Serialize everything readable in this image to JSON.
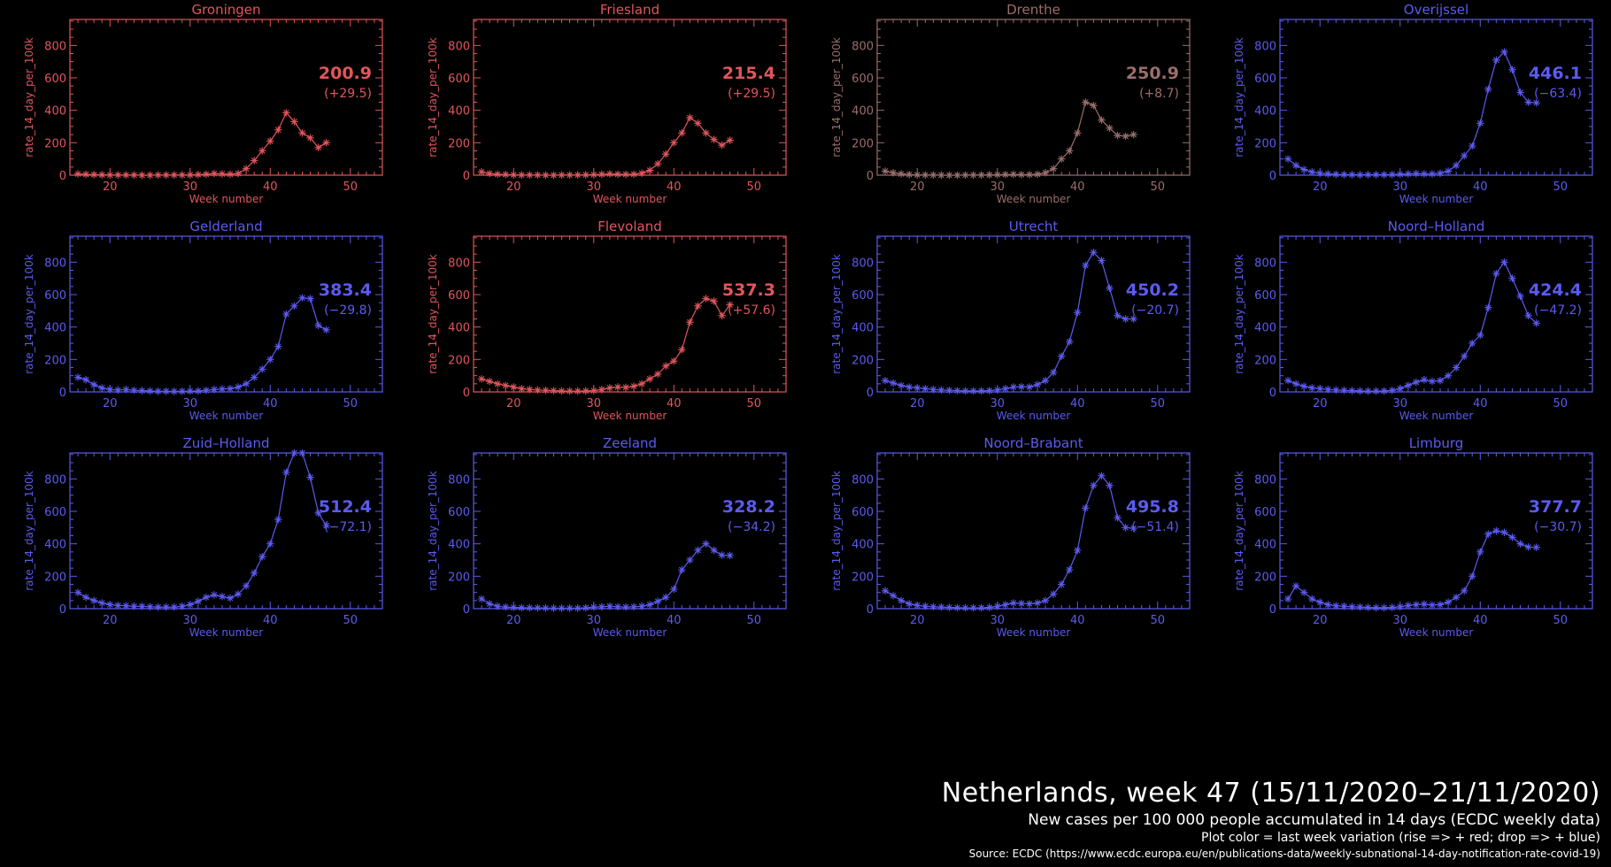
{
  "footer": {
    "title": "Netherlands, week 47 (15/11/2020–21/11/2020)",
    "subtitle": "New cases per 100 000 people accumulated in 14 days (ECDC weekly data)",
    "note": "Plot color = last week variation (rise => + red; drop => + blue)",
    "source": "Source: ECDC (https://www.ecdc.europa.eu/en/publications-data/weekly-subnational-14-day-notification-rate-covid-19)"
  },
  "colors": {
    "red": "#e0565c",
    "blue": "#5b5bf0",
    "neutral": "#9a6e6c",
    "background": "#000000"
  },
  "chart_data": [
    {
      "type": "line",
      "title": "Groningen",
      "xlabel": "Week number",
      "ylabel": "rate_14_day_per_100k",
      "xlim": [
        15,
        54
      ],
      "ylim": [
        0,
        960
      ],
      "xticks": [
        20,
        30,
        40,
        50
      ],
      "yticks": [
        0,
        200,
        400,
        600,
        800
      ],
      "x": [
        16,
        17,
        18,
        19,
        20,
        21,
        22,
        23,
        24,
        25,
        26,
        27,
        28,
        29,
        30,
        31,
        32,
        33,
        34,
        35,
        36,
        37,
        38,
        39,
        40,
        41,
        42,
        43,
        44,
        45,
        46,
        47
      ],
      "series": [
        {
          "values": [
            8,
            5,
            3,
            2,
            1,
            1,
            1,
            1,
            0,
            0,
            1,
            1,
            1,
            1,
            2,
            3,
            6,
            10,
            8,
            6,
            10,
            40,
            90,
            150,
            210,
            280,
            385,
            330,
            260,
            230,
            170,
            200
          ]
        }
      ],
      "last_value": "200.9",
      "variation": "(+29.5)",
      "color": "red"
    },
    {
      "type": "line",
      "title": "Friesland",
      "xlabel": "Week number",
      "ylabel": "rate_14_day_per_100k",
      "xlim": [
        15,
        54
      ],
      "ylim": [
        0,
        960
      ],
      "xticks": [
        20,
        30,
        40,
        50
      ],
      "yticks": [
        0,
        200,
        400,
        600,
        800
      ],
      "x": [
        16,
        17,
        18,
        19,
        20,
        21,
        22,
        23,
        24,
        25,
        26,
        27,
        28,
        29,
        30,
        31,
        32,
        33,
        34,
        35,
        36,
        37,
        38,
        39,
        40,
        41,
        42,
        43,
        44,
        45,
        46,
        47
      ],
      "series": [
        {
          "values": [
            20,
            10,
            6,
            4,
            2,
            1,
            1,
            1,
            0,
            0,
            1,
            1,
            1,
            2,
            3,
            5,
            8,
            6,
            5,
            6,
            12,
            30,
            70,
            130,
            200,
            260,
            355,
            320,
            260,
            220,
            185,
            215
          ]
        }
      ],
      "last_value": "215.4",
      "variation": "(+29.5)",
      "color": "red"
    },
    {
      "type": "line",
      "title": "Drenthe",
      "xlabel": "Week number",
      "ylabel": "rate_14_day_per_100k",
      "xlim": [
        15,
        54
      ],
      "ylim": [
        0,
        960
      ],
      "xticks": [
        20,
        30,
        40,
        50
      ],
      "yticks": [
        0,
        200,
        400,
        600,
        800
      ],
      "x": [
        16,
        17,
        18,
        19,
        20,
        21,
        22,
        23,
        24,
        25,
        26,
        27,
        28,
        29,
        30,
        31,
        32,
        33,
        34,
        35,
        36,
        37,
        38,
        39,
        40,
        41,
        42,
        43,
        44,
        45,
        46,
        47
      ],
      "series": [
        {
          "values": [
            25,
            15,
            8,
            4,
            2,
            1,
            1,
            0,
            0,
            0,
            1,
            1,
            1,
            2,
            3,
            4,
            5,
            4,
            4,
            6,
            15,
            40,
            100,
            150,
            260,
            450,
            430,
            340,
            290,
            245,
            240,
            250
          ]
        }
      ],
      "last_value": "250.9",
      "variation": "(+8.7)",
      "color": "neutral"
    },
    {
      "type": "line",
      "title": "Overijssel",
      "xlabel": "Week number",
      "ylabel": "rate_14_day_per_100k",
      "xlim": [
        15,
        54
      ],
      "ylim": [
        0,
        960
      ],
      "xticks": [
        20,
        30,
        40,
        50
      ],
      "yticks": [
        0,
        200,
        400,
        600,
        800
      ],
      "x": [
        16,
        17,
        18,
        19,
        20,
        21,
        22,
        23,
        24,
        25,
        26,
        27,
        28,
        29,
        30,
        31,
        32,
        33,
        34,
        35,
        36,
        37,
        38,
        39,
        40,
        41,
        42,
        43,
        44,
        45,
        46,
        47
      ],
      "series": [
        {
          "values": [
            100,
            60,
            35,
            20,
            12,
            8,
            5,
            4,
            3,
            2,
            3,
            3,
            3,
            4,
            6,
            8,
            10,
            8,
            8,
            12,
            25,
            60,
            120,
            180,
            320,
            530,
            710,
            760,
            650,
            510,
            450,
            446
          ]
        }
      ],
      "last_value": "446.1",
      "variation": "(−63.4)",
      "color": "blue"
    },
    {
      "type": "line",
      "title": "Gelderland",
      "xlabel": "Week number",
      "ylabel": "rate_14_day_per_100k",
      "xlim": [
        15,
        54
      ],
      "ylim": [
        0,
        960
      ],
      "xticks": [
        20,
        30,
        40,
        50
      ],
      "yticks": [
        0,
        200,
        400,
        600,
        800
      ],
      "x": [
        16,
        17,
        18,
        19,
        20,
        21,
        22,
        23,
        24,
        25,
        26,
        27,
        28,
        29,
        30,
        31,
        32,
        33,
        34,
        35,
        36,
        37,
        38,
        39,
        40,
        41,
        42,
        43,
        44,
        45,
        46,
        47
      ],
      "series": [
        {
          "values": [
            90,
            75,
            45,
            25,
            15,
            12,
            15,
            10,
            8,
            6,
            4,
            4,
            3,
            4,
            5,
            6,
            10,
            15,
            18,
            20,
            30,
            50,
            90,
            140,
            200,
            280,
            480,
            530,
            580,
            575,
            410,
            383
          ]
        }
      ],
      "last_value": "383.4",
      "variation": "(−29.8)",
      "color": "blue"
    },
    {
      "type": "line",
      "title": "Flevoland",
      "xlabel": "Week number",
      "ylabel": "rate_14_day_per_100k",
      "xlim": [
        15,
        54
      ],
      "ylim": [
        0,
        960
      ],
      "xticks": [
        20,
        30,
        40,
        50
      ],
      "yticks": [
        0,
        200,
        400,
        600,
        800
      ],
      "x": [
        16,
        17,
        18,
        19,
        20,
        21,
        22,
        23,
        24,
        25,
        26,
        27,
        28,
        29,
        30,
        31,
        32,
        33,
        34,
        35,
        36,
        37,
        38,
        39,
        40,
        41,
        42,
        43,
        44,
        45,
        46,
        47
      ],
      "series": [
        {
          "values": [
            80,
            65,
            50,
            40,
            30,
            20,
            15,
            12,
            10,
            8,
            6,
            5,
            5,
            6,
            8,
            15,
            25,
            30,
            28,
            35,
            50,
            80,
            110,
            160,
            190,
            260,
            430,
            530,
            575,
            560,
            470,
            537
          ]
        }
      ],
      "last_value": "537.3",
      "variation": "(+57.6)",
      "color": "red"
    },
    {
      "type": "line",
      "title": "Utrecht",
      "xlabel": "Week number",
      "ylabel": "rate_14_day_per_100k",
      "xlim": [
        15,
        54
      ],
      "ylim": [
        0,
        960
      ],
      "xticks": [
        20,
        30,
        40,
        50
      ],
      "yticks": [
        0,
        200,
        400,
        600,
        800
      ],
      "x": [
        16,
        17,
        18,
        19,
        20,
        21,
        22,
        23,
        24,
        25,
        26,
        27,
        28,
        29,
        30,
        31,
        32,
        33,
        34,
        35,
        36,
        37,
        38,
        39,
        40,
        41,
        42,
        43,
        44,
        45,
        46,
        47
      ],
      "series": [
        {
          "values": [
            70,
            55,
            40,
            30,
            25,
            20,
            15,
            12,
            10,
            8,
            6,
            6,
            6,
            8,
            12,
            20,
            30,
            32,
            30,
            45,
            70,
            120,
            220,
            310,
            490,
            780,
            860,
            810,
            640,
            470,
            450,
            450
          ]
        }
      ],
      "last_value": "450.2",
      "variation": "(−20.7)",
      "color": "blue"
    },
    {
      "type": "line",
      "title": "Noord–Holland",
      "xlabel": "Week number",
      "ylabel": "rate_14_day_per_100k",
      "xlim": [
        15,
        54
      ],
      "ylim": [
        0,
        960
      ],
      "xticks": [
        20,
        30,
        40,
        50
      ],
      "yticks": [
        0,
        200,
        400,
        600,
        800
      ],
      "x": [
        16,
        17,
        18,
        19,
        20,
        21,
        22,
        23,
        24,
        25,
        26,
        27,
        28,
        29,
        30,
        31,
        32,
        33,
        34,
        35,
        36,
        37,
        38,
        39,
        40,
        41,
        42,
        43,
        44,
        45,
        46,
        47
      ],
      "series": [
        {
          "values": [
            70,
            50,
            35,
            25,
            20,
            15,
            12,
            10,
            8,
            6,
            5,
            5,
            6,
            10,
            20,
            40,
            60,
            75,
            65,
            70,
            100,
            150,
            220,
            300,
            350,
            520,
            730,
            800,
            700,
            590,
            470,
            424
          ]
        }
      ],
      "last_value": "424.4",
      "variation": "(−47.2)",
      "color": "blue"
    },
    {
      "type": "line",
      "title": "Zuid–Holland",
      "xlabel": "Week number",
      "ylabel": "rate_14_day_per_100k",
      "xlim": [
        15,
        54
      ],
      "ylim": [
        0,
        960
      ],
      "xticks": [
        20,
        30,
        40,
        50
      ],
      "yticks": [
        0,
        200,
        400,
        600,
        800
      ],
      "x": [
        16,
        17,
        18,
        19,
        20,
        21,
        22,
        23,
        24,
        25,
        26,
        27,
        28,
        29,
        30,
        31,
        32,
        33,
        34,
        35,
        36,
        37,
        38,
        39,
        40,
        41,
        42,
        43,
        44,
        45,
        46,
        47
      ],
      "series": [
        {
          "values": [
            100,
            70,
            50,
            35,
            25,
            20,
            18,
            15,
            15,
            12,
            10,
            10,
            10,
            15,
            25,
            45,
            70,
            85,
            75,
            65,
            90,
            140,
            220,
            320,
            400,
            550,
            840,
            960,
            960,
            810,
            590,
            512
          ]
        }
      ],
      "last_value": "512.4",
      "variation": "(−72.1)",
      "color": "blue"
    },
    {
      "type": "line",
      "title": "Zeeland",
      "xlabel": "Week number",
      "ylabel": "rate_14_day_per_100k",
      "xlim": [
        15,
        54
      ],
      "ylim": [
        0,
        960
      ],
      "xticks": [
        20,
        30,
        40,
        50
      ],
      "yticks": [
        0,
        200,
        400,
        600,
        800
      ],
      "x": [
        16,
        17,
        18,
        19,
        20,
        21,
        22,
        23,
        24,
        25,
        26,
        27,
        28,
        29,
        30,
        31,
        32,
        33,
        34,
        35,
        36,
        37,
        38,
        39,
        40,
        41,
        42,
        43,
        44,
        45,
        46,
        47
      ],
      "series": [
        {
          "values": [
            60,
            30,
            15,
            10,
            8,
            6,
            5,
            5,
            4,
            3,
            3,
            3,
            3,
            5,
            10,
            12,
            15,
            12,
            10,
            12,
            15,
            25,
            45,
            70,
            120,
            240,
            300,
            360,
            400,
            360,
            330,
            328
          ]
        }
      ],
      "last_value": "328.2",
      "variation": "(−34.2)",
      "color": "blue"
    },
    {
      "type": "line",
      "title": "Noord–Brabant",
      "xlabel": "Week number",
      "ylabel": "rate_14_day_per_100k",
      "xlim": [
        15,
        54
      ],
      "ylim": [
        0,
        960
      ],
      "xticks": [
        20,
        30,
        40,
        50
      ],
      "yticks": [
        0,
        200,
        400,
        600,
        800
      ],
      "x": [
        16,
        17,
        18,
        19,
        20,
        21,
        22,
        23,
        24,
        25,
        26,
        27,
        28,
        29,
        30,
        31,
        32,
        33,
        34,
        35,
        36,
        37,
        38,
        39,
        40,
        41,
        42,
        43,
        44,
        45,
        46,
        47
      ],
      "series": [
        {
          "values": [
            110,
            80,
            50,
            30,
            20,
            15,
            12,
            10,
            8,
            6,
            5,
            5,
            5,
            8,
            15,
            25,
            35,
            32,
            30,
            35,
            50,
            90,
            150,
            240,
            360,
            620,
            760,
            820,
            760,
            560,
            500,
            496
          ]
        }
      ],
      "last_value": "495.8",
      "variation": "(−51.4)",
      "color": "blue"
    },
    {
      "type": "line",
      "title": "Limburg",
      "xlabel": "Week number",
      "ylabel": "rate_14_day_per_100k",
      "xlim": [
        15,
        54
      ],
      "ylim": [
        0,
        960
      ],
      "xticks": [
        20,
        30,
        40,
        50
      ],
      "yticks": [
        0,
        200,
        400,
        600,
        800
      ],
      "x": [
        16,
        17,
        18,
        19,
        20,
        21,
        22,
        23,
        24,
        25,
        26,
        27,
        28,
        29,
        30,
        31,
        32,
        33,
        34,
        35,
        36,
        37,
        38,
        39,
        40,
        41,
        42,
        43,
        44,
        45,
        46,
        47
      ],
      "series": [
        {
          "values": [
            60,
            140,
            100,
            60,
            40,
            25,
            18,
            15,
            12,
            10,
            8,
            6,
            6,
            8,
            12,
            20,
            25,
            28,
            22,
            25,
            40,
            70,
            110,
            200,
            350,
            460,
            480,
            470,
            440,
            400,
            380,
            378
          ]
        }
      ],
      "last_value": "377.7",
      "variation": "(−30.7)",
      "color": "blue"
    }
  ]
}
